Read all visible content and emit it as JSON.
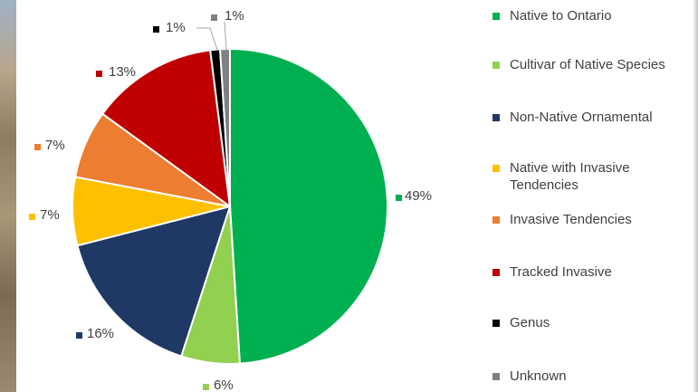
{
  "chart_data": {
    "type": "pie",
    "title": "",
    "series": [
      {
        "values": [
          49,
          6,
          16,
          7,
          7,
          13,
          1,
          1
        ],
        "labels": [
          "49%",
          "6%",
          "16%",
          "7%",
          "7%",
          "13%",
          "1%",
          "1%"
        ]
      }
    ],
    "categories": [
      "Native to Ontario",
      "Cultivar of Native Species",
      "Non-Native Ornamental",
      "Native with Invasive Tendencies",
      "Invasive Tendencies",
      "Tracked Invasive",
      "Genus",
      "Unknown"
    ],
    "colors": [
      "#00b050",
      "#92d050",
      "#1f3864",
      "#ffc000",
      "#ed7d31",
      "#c00000",
      "#000000",
      "#808080"
    ],
    "legend_position": "right",
    "start_angle_deg": 0,
    "direction": "clockwise"
  },
  "legend": {
    "items": [
      {
        "lines": [
          "Native to Ontario"
        ],
        "color": "#00b050"
      },
      {
        "lines": [
          "Cultivar of Native Species"
        ],
        "color": "#92d050"
      },
      {
        "lines": [
          "Non-Native Ornamental"
        ],
        "color": "#1f3864"
      },
      {
        "lines": [
          "Native with Invasive",
          "Tendencies"
        ],
        "color": "#ffc000"
      },
      {
        "lines": [
          "Invasive Tendencies"
        ],
        "color": "#ed7d31"
      },
      {
        "lines": [
          "Tracked Invasive"
        ],
        "color": "#c00000"
      },
      {
        "lines": [
          "Genus"
        ],
        "color": "#000000"
      },
      {
        "lines": [
          "Unknown"
        ],
        "color": "#808080"
      }
    ]
  }
}
